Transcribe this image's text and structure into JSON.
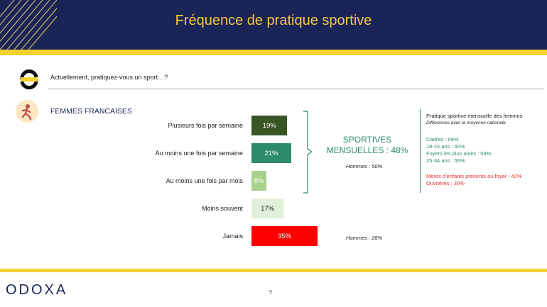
{
  "header": {
    "title": "Fréquence de pratique sportive"
  },
  "question": "Actuellement, pratiquez-vous un sport…?",
  "section_label": "FEMMES FRANCAISES",
  "chart_data": {
    "type": "bar",
    "orientation": "horizontal",
    "categories": [
      "Plusieurs fois par semaine",
      "Au moins une fois par semaine",
      "Au moins une fois par mois",
      "Moins souvent",
      "Jamais"
    ],
    "values": [
      19,
      21,
      8,
      17,
      35
    ],
    "value_labels": [
      "19%",
      "21%",
      "8%",
      "17%",
      "35%"
    ],
    "colors": [
      "#375623",
      "#2e8b6a",
      "#a9d18e",
      "#e2efd9",
      "#ff0000"
    ],
    "label_colors": [
      "#ffffff",
      "#ffffff",
      "#ffffff",
      "#222222",
      "#ffffff"
    ],
    "xlim": [
      0,
      35
    ],
    "annotations": {
      "summary": "SPORTIVES MENSUELLES : 48%",
      "summary_note": "Hommes : 50%",
      "jamais_note": "Hommes : 28%"
    }
  },
  "side_panel": {
    "title": "Pratique sportive mensuelle des femmes",
    "subtitle": "Différences avec la moyenne nationale",
    "items": [
      {
        "text": "Cadres : 69%",
        "color": "#2e8b6a"
      },
      {
        "text": "18-24 ans : 60%",
        "color": "#2e8b6a"
      },
      {
        "text": "Foyers les plus aisés : 59%",
        "color": "#2e8b6a"
      },
      {
        "text": "25-34 ans : 55%",
        "color": "#2e8b6a"
      },
      {
        "text": "Mères d'enfants présents au foyer : 42%",
        "color": "#e53030"
      },
      {
        "text": "Ouvrières : 30%",
        "color": "#e53030"
      }
    ]
  },
  "footer": {
    "logo": "ODOXA",
    "page": "9"
  }
}
